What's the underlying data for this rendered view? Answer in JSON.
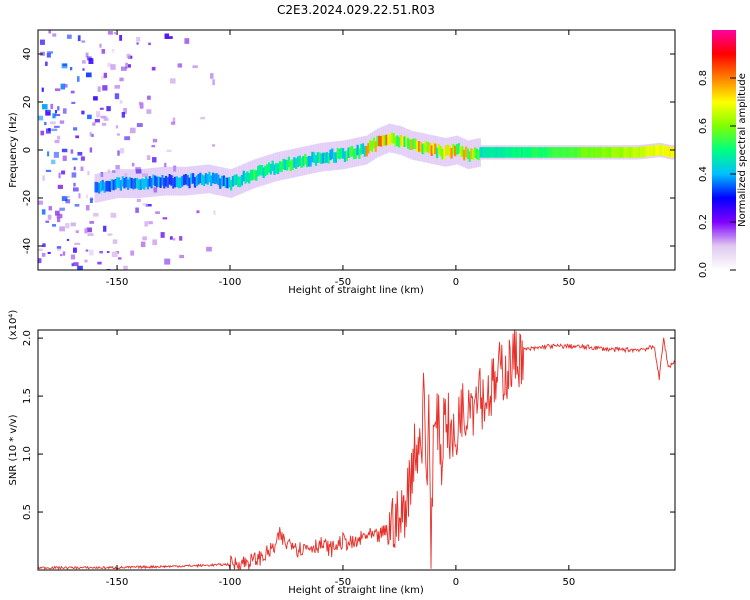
{
  "title": "C2E3.2024.029.22.51.R03",
  "chart_data": [
    {
      "type": "heatmap",
      "title": "C2E3.2024.029.22.51.R03",
      "xlabel": "Height of straight line (km)",
      "ylabel": "Frequency (Hz)",
      "xlim": [
        -185,
        97
      ],
      "ylim": [
        -50,
        50
      ],
      "xticks": [
        -150,
        -100,
        -50,
        0,
        50
      ],
      "yticks": [
        -40,
        -20,
        0,
        20,
        40
      ],
      "colorbar": {
        "label": "Normalized spectral amplitude",
        "range": [
          0,
          1
        ],
        "ticks": [
          "0.0",
          "0.2",
          "0.4",
          "0.6",
          "0.8"
        ],
        "tick_values": [
          0.0,
          0.2,
          0.4,
          0.6,
          0.8
        ],
        "colors": [
          "#ffffff",
          "#e0c8f0",
          "#8000ff",
          "#0000ff",
          "#00c0ff",
          "#00ff80",
          "#80ff00",
          "#ffff00",
          "#ff8000",
          "#ff0000",
          "#ff00a0"
        ]
      },
      "ridge": {
        "x": [
          -160,
          -150,
          -140,
          -130,
          -120,
          -110,
          -100,
          -90,
          -80,
          -70,
          -60,
          -50,
          -40,
          -35,
          -30,
          -25,
          -20,
          -15,
          -10,
          -5,
          0,
          5,
          10,
          15,
          20,
          30,
          40,
          50,
          60,
          70,
          80,
          90,
          95
        ],
        "y": [
          -16,
          -14,
          -14,
          -13,
          -13,
          -12,
          -14,
          -10,
          -7,
          -5,
          -3,
          -2,
          0,
          3,
          5,
          4,
          2,
          1,
          0,
          -1,
          0,
          -2,
          -1,
          -1,
          -1,
          -1,
          -1,
          -1,
          -1,
          -1,
          -1,
          0,
          -1
        ]
      }
    },
    {
      "type": "line",
      "xlabel": "Height of straight line (km)",
      "ylabel": "SNR (10 * v/v)",
      "scale_label": "(x10⁴)",
      "xlim": [
        -185,
        97
      ],
      "ylim": [
        0,
        2.07
      ],
      "xticks": [
        -150,
        -100,
        -50,
        0,
        50
      ],
      "yticks": [
        0.5,
        1.0,
        1.5,
        2.0
      ],
      "ytick_labels": [
        "0.5",
        "1.0",
        "1.5",
        "2.0"
      ],
      "series": [
        {
          "color": "#e8302a",
          "x": [
            -185,
            -170,
            -150,
            -130,
            -110,
            -100,
            -95,
            -90,
            -85,
            -80,
            -78,
            -75,
            -72,
            -70,
            -65,
            -60,
            -55,
            -50,
            -45,
            -40,
            -35,
            -30,
            -27,
            -25,
            -22,
            -20,
            -18,
            -17,
            -16,
            -15,
            -14,
            -13,
            -12,
            -11,
            -10,
            -8,
            -6,
            -5,
            -3,
            0,
            2,
            4,
            6,
            8,
            10,
            12,
            15,
            18,
            20,
            22,
            25,
            28,
            30,
            35,
            40,
            50,
            60,
            70,
            80,
            88,
            90,
            92,
            94,
            97
          ],
          "y": [
            0.02,
            0.02,
            0.02,
            0.03,
            0.04,
            0.05,
            0.06,
            0.08,
            0.12,
            0.2,
            0.3,
            0.22,
            0.25,
            0.18,
            0.2,
            0.22,
            0.18,
            0.25,
            0.22,
            0.3,
            0.28,
            0.35,
            0.45,
            0.38,
            0.6,
            0.8,
            1.15,
            0.9,
            1.3,
            1.0,
            1.7,
            0.6,
            1.45,
            0.2,
            1.1,
            1.3,
            0.9,
            1.5,
            1.2,
            1.05,
            1.45,
            1.3,
            1.6,
            1.4,
            1.7,
            1.45,
            1.55,
            1.6,
            1.75,
            1.7,
            1.8,
            1.85,
            1.9,
            1.91,
            1.93,
            1.93,
            1.92,
            1.9,
            1.9,
            1.92,
            1.65,
            2.0,
            1.75,
            1.8
          ]
        }
      ]
    }
  ]
}
